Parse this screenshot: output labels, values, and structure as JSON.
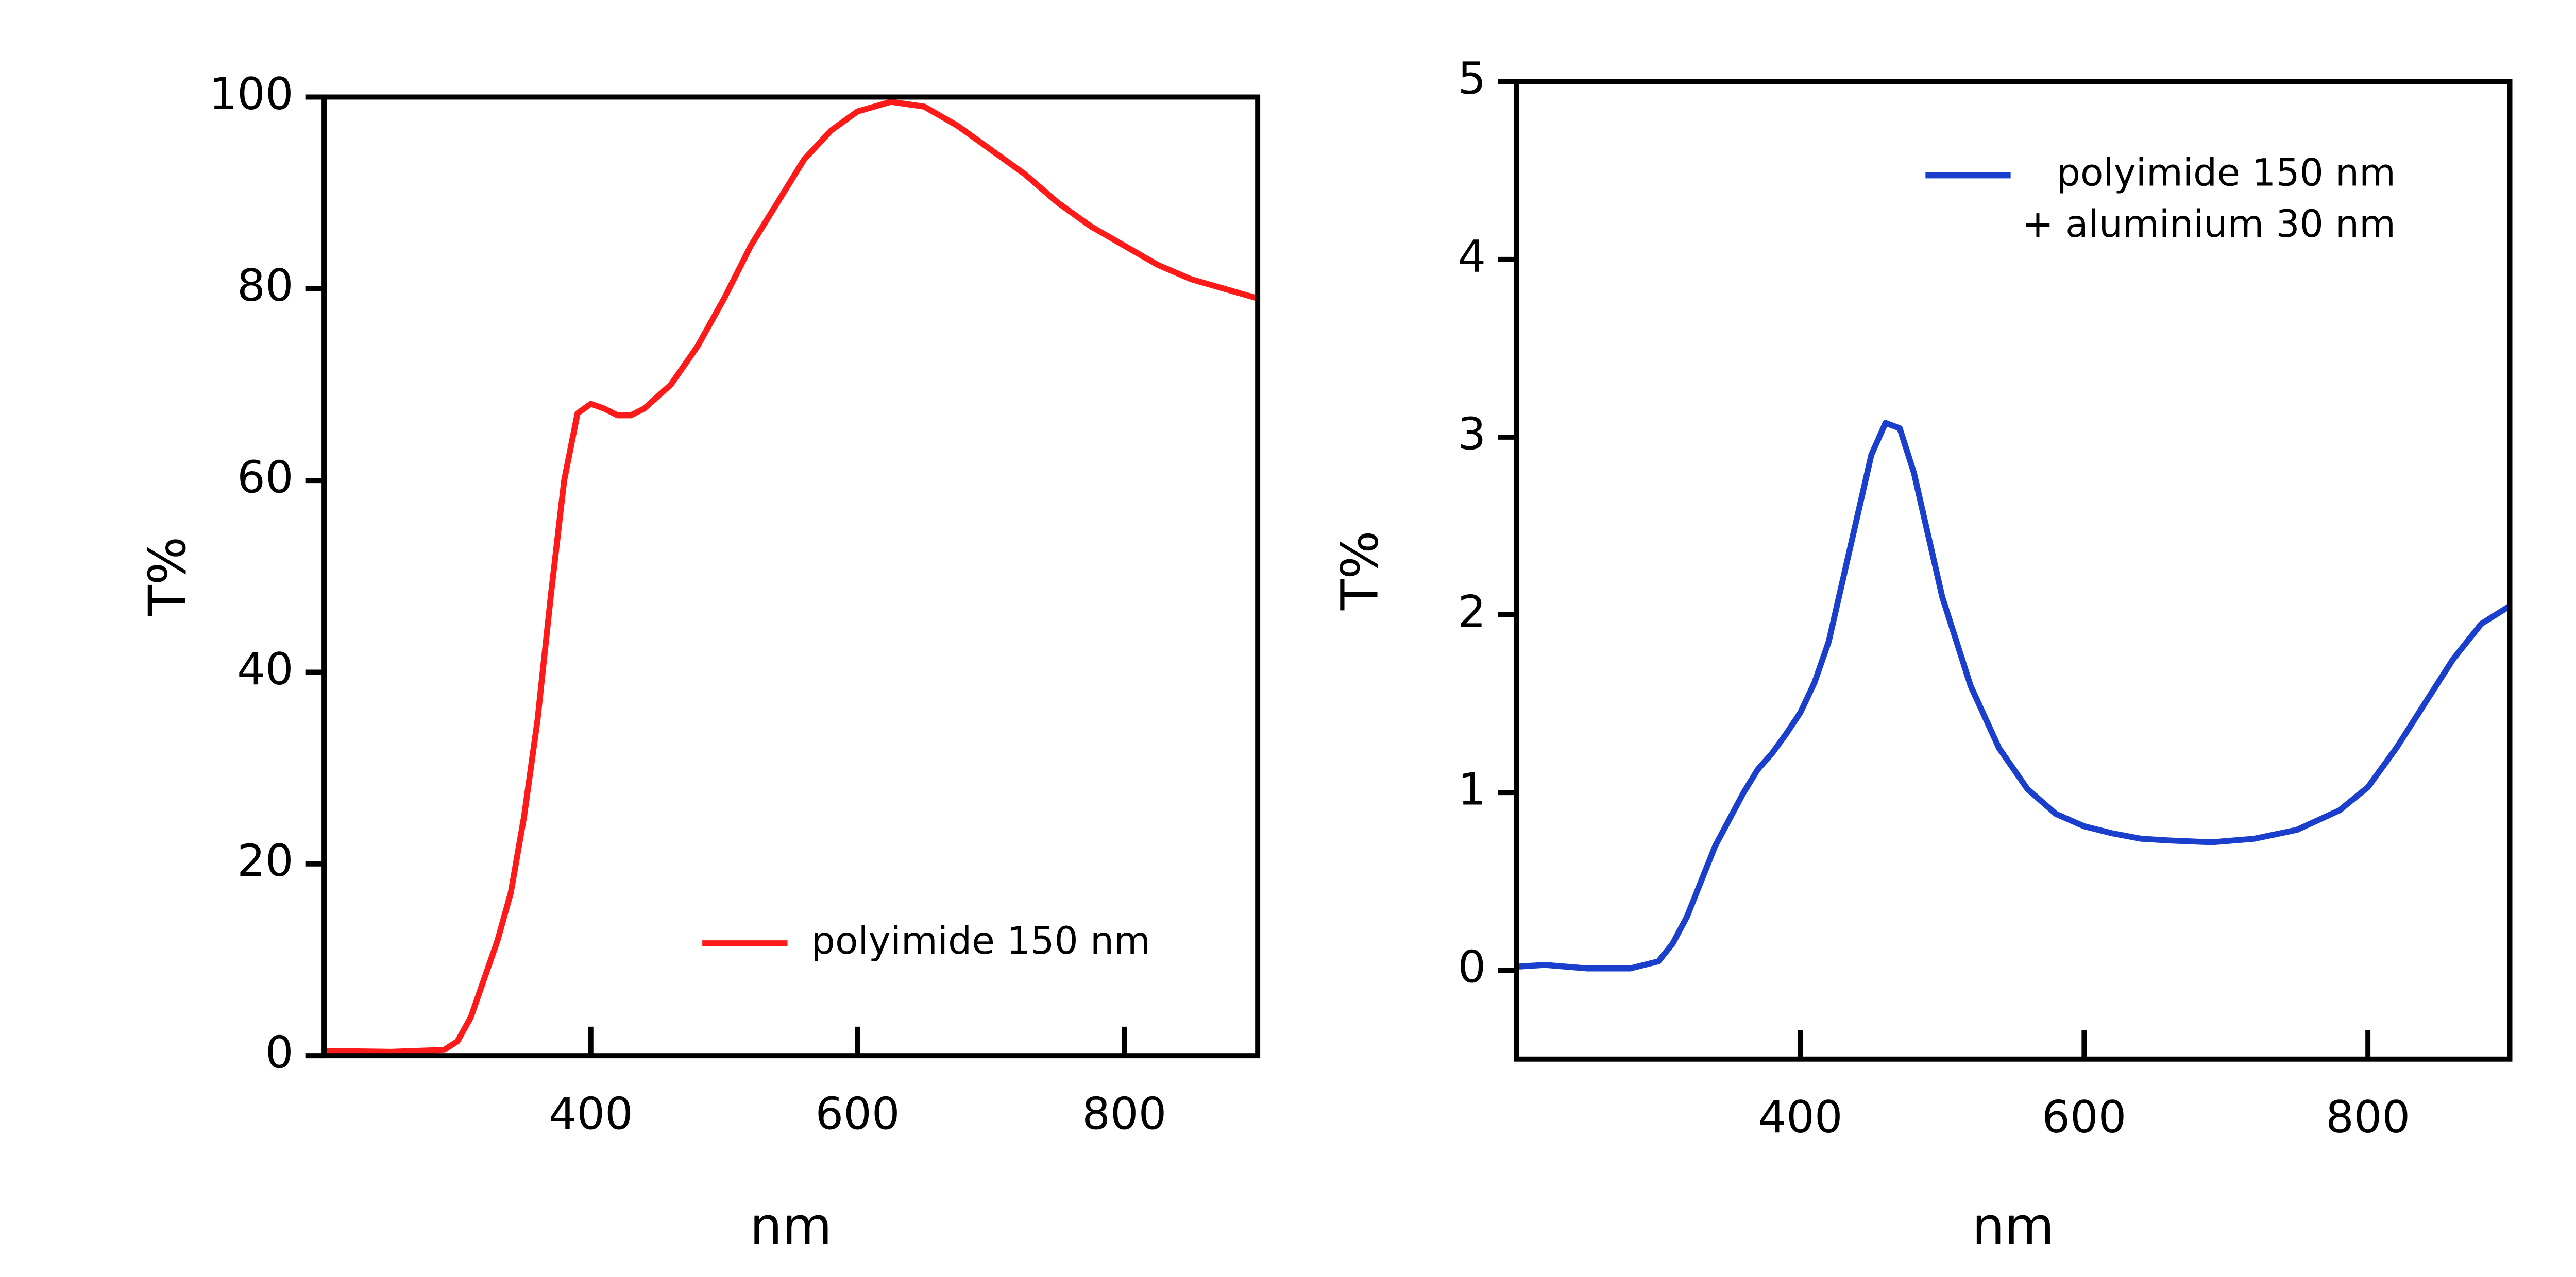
{
  "chart_data": [
    {
      "type": "line",
      "xlabel": "nm",
      "ylabel": "T%",
      "xlim": [
        200,
        900
      ],
      "xticks": [
        400,
        600,
        800
      ],
      "ylim": [
        0,
        100
      ],
      "yticks": [
        0,
        20,
        40,
        60,
        80,
        100
      ],
      "legend": "lower right",
      "series": [
        {
          "name": "polyimide 150 nm",
          "color": "#ff1a1a",
          "x": [
            200,
            250,
            290,
            300,
            310,
            320,
            330,
            340,
            350,
            360,
            370,
            380,
            390,
            400,
            410,
            420,
            430,
            440,
            460,
            480,
            500,
            520,
            540,
            560,
            580,
            600,
            625,
            650,
            675,
            700,
            725,
            750,
            775,
            800,
            825,
            850,
            875,
            900
          ],
          "values": [
            0.5,
            0.4,
            0.6,
            1.5,
            4,
            8,
            12,
            17,
            25,
            35,
            48,
            60,
            67,
            68,
            67.5,
            66.8,
            66.8,
            67.5,
            70,
            74,
            79,
            84.5,
            89,
            93.5,
            96.5,
            98.5,
            99.5,
            99,
            97,
            94.5,
            92,
            89,
            86.5,
            84.5,
            82.5,
            81,
            80,
            79
          ]
        }
      ]
    },
    {
      "type": "line",
      "xlabel": "nm",
      "ylabel": "T%",
      "xlim": [
        200,
        900
      ],
      "xticks": [
        400,
        600,
        800
      ],
      "ylim": [
        -0.5,
        5
      ],
      "yticks": [
        0,
        1,
        2,
        3,
        4,
        5
      ],
      "legend": "upper right",
      "series": [
        {
          "name": "polyimide 150 nm\n+ aluminium 30 nm",
          "color": "#1a3fcc",
          "x": [
            200,
            220,
            250,
            280,
            300,
            310,
            320,
            330,
            340,
            350,
            360,
            370,
            380,
            390,
            400,
            410,
            420,
            430,
            440,
            450,
            460,
            470,
            480,
            490,
            500,
            510,
            520,
            540,
            560,
            580,
            600,
            620,
            640,
            660,
            690,
            720,
            750,
            780,
            800,
            820,
            840,
            860,
            880,
            900
          ],
          "values": [
            0.02,
            0.03,
            0.01,
            0.01,
            0.05,
            0.15,
            0.3,
            0.5,
            0.7,
            0.85,
            1.0,
            1.13,
            1.22,
            1.33,
            1.45,
            1.62,
            1.85,
            2.2,
            2.55,
            2.9,
            3.08,
            3.05,
            2.8,
            2.45,
            2.1,
            1.85,
            1.6,
            1.25,
            1.02,
            0.88,
            0.81,
            0.77,
            0.74,
            0.73,
            0.72,
            0.74,
            0.79,
            0.9,
            1.03,
            1.25,
            1.5,
            1.75,
            1.95,
            2.05
          ]
        }
      ]
    }
  ]
}
